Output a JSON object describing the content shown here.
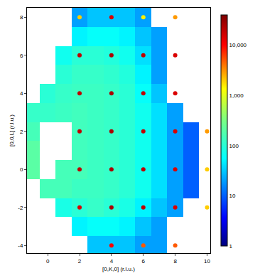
{
  "chart_data": {
    "type": "heatmap",
    "x_label": "[0,K,0] (r.l.u.)",
    "y_label": "[0,0,L] (r.l.u.)",
    "xlim": [
      -1.3,
      10.2
    ],
    "ylim": [
      -4.4,
      8.5
    ],
    "xticks": [
      0,
      2,
      4,
      6,
      8,
      10
    ],
    "yticks": [
      -4,
      -2,
      0,
      2,
      4,
      6,
      8
    ],
    "grid": false,
    "log": true,
    "cells": {
      "x": [
        -1,
        0,
        1,
        2,
        3,
        4,
        5,
        6,
        7,
        8,
        9,
        10
      ],
      "y": [
        -4,
        -3,
        -2,
        -1,
        0,
        1,
        2,
        3,
        4,
        5,
        6,
        7,
        8
      ],
      "z": [
        [
          null,
          null,
          null,
          null,
          30,
          30,
          30,
          20,
          20,
          null,
          null,
          null
        ],
        [
          null,
          null,
          null,
          50,
          60,
          60,
          50,
          30,
          20,
          null,
          null,
          null
        ],
        [
          null,
          null,
          80,
          100,
          120,
          100,
          80,
          50,
          30,
          20,
          null,
          null
        ],
        [
          null,
          150,
          150,
          130,
          130,
          120,
          100,
          70,
          40,
          20,
          10,
          null
        ],
        [
          200,
          null,
          150,
          150,
          130,
          120,
          100,
          70,
          40,
          20,
          10,
          null
        ],
        [
          200,
          null,
          null,
          140,
          130,
          120,
          100,
          70,
          40,
          20,
          10,
          null
        ],
        [
          150,
          null,
          null,
          140,
          130,
          120,
          100,
          70,
          40,
          20,
          10,
          null
        ],
        [
          120,
          120,
          130,
          140,
          130,
          120,
          100,
          70,
          40,
          20,
          null,
          null
        ],
        [
          null,
          100,
          120,
          130,
          130,
          120,
          100,
          60,
          30,
          null,
          null,
          null
        ],
        [
          null,
          null,
          100,
          120,
          120,
          110,
          90,
          50,
          20,
          null,
          null,
          null
        ],
        [
          null,
          null,
          70,
          100,
          100,
          90,
          70,
          40,
          20,
          null,
          null,
          null
        ],
        [
          null,
          null,
          null,
          50,
          60,
          60,
          50,
          30,
          20,
          null,
          null,
          null
        ],
        [
          null,
          null,
          null,
          20,
          30,
          30,
          30,
          20,
          null,
          null,
          null,
          null
        ]
      ]
    },
    "peaks": {
      "marker": "circle",
      "x": [
        2,
        2,
        2,
        2,
        2,
        2,
        4,
        4,
        4,
        4,
        4,
        4,
        4,
        6,
        6,
        6,
        6,
        6,
        6,
        6,
        8,
        8,
        8,
        8,
        8,
        8,
        8,
        10,
        10,
        10
      ],
      "y": [
        8,
        6,
        4,
        2,
        0,
        -2,
        8,
        6,
        4,
        2,
        0,
        -2,
        -4,
        8,
        6,
        4,
        2,
        0,
        -2,
        -4,
        8,
        6,
        4,
        2,
        0,
        -2,
        -4,
        2,
        0,
        -2
      ],
      "values": [
        2000,
        20000,
        20000,
        20000,
        20000,
        15000,
        15000,
        25000,
        25000,
        25000,
        25000,
        25000,
        10000,
        1500,
        20000,
        20000,
        20000,
        20000,
        20000,
        5000,
        3000,
        15000,
        15000,
        15000,
        15000,
        15000,
        5000,
        3000,
        2000,
        2000
      ]
    },
    "colorbar": {
      "range": [
        1,
        40000
      ],
      "ticks": [
        1,
        10,
        100,
        {
          "value": 1000,
          "label": "1,000"
        },
        {
          "value": 10000,
          "label": "10,000"
        }
      ]
    }
  }
}
